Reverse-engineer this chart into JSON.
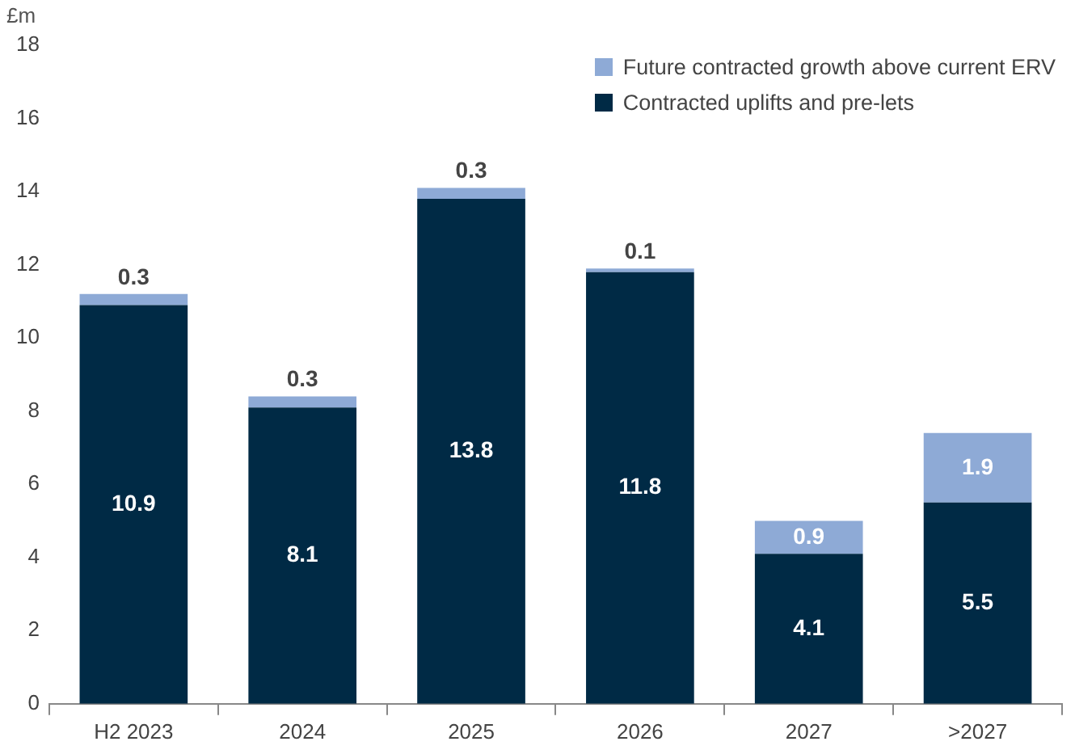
{
  "chart_data": {
    "type": "bar",
    "ylabel": "£m",
    "categories": [
      "H2 2023",
      "2024",
      "2025",
      "2026",
      "2027",
      ">2027"
    ],
    "series": [
      {
        "name": "Contracted uplifts and pre-lets",
        "color": "#002a45",
        "values": [
          10.9,
          8.1,
          13.8,
          11.8,
          4.1,
          5.5
        ]
      },
      {
        "name": "Future contracted growth above current ERV",
        "color": "#8eaad6",
        "values": [
          0.3,
          0.3,
          0.3,
          0.1,
          0.9,
          1.9
        ]
      }
    ],
    "stacked": true,
    "ylim": [
      0,
      18
    ],
    "yticks": [
      0,
      2,
      4,
      6,
      8,
      10,
      12,
      14,
      16,
      18
    ],
    "grid": false,
    "legend": "top right",
    "data_labels": true
  }
}
